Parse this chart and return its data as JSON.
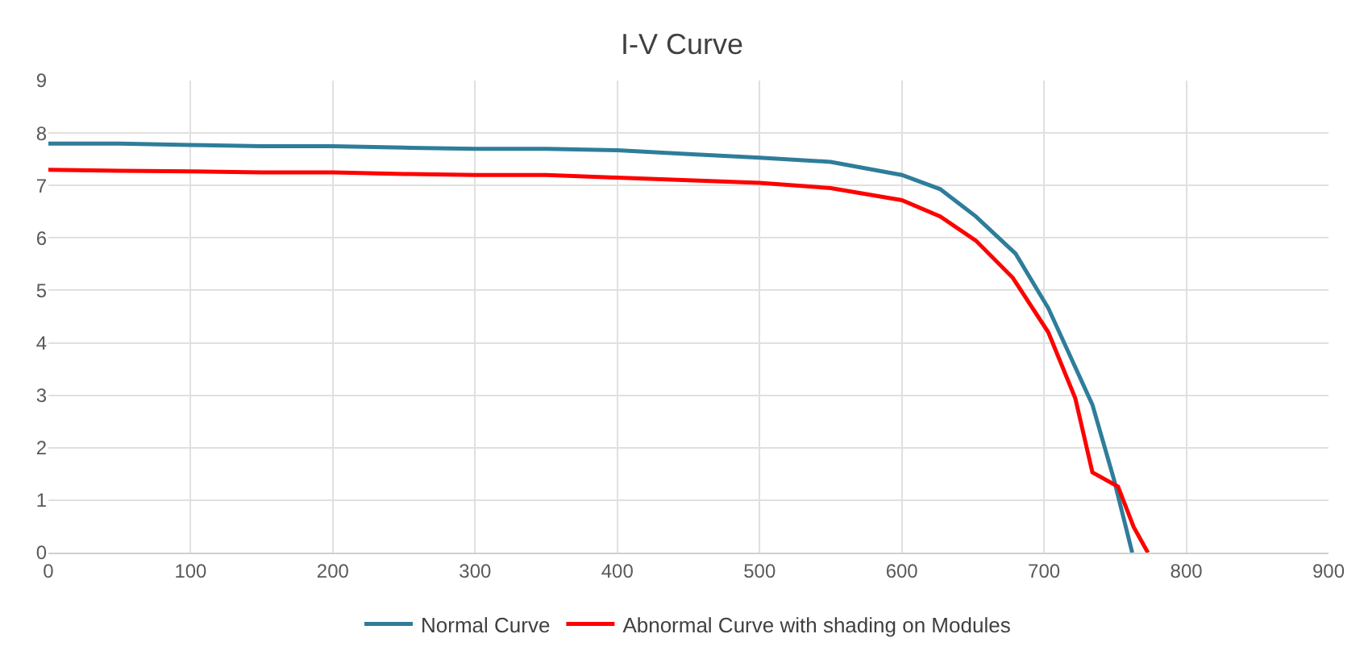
{
  "chart_data": {
    "type": "line",
    "title": "I-V Curve",
    "legend": "bottom",
    "grid": true,
    "marker": "none",
    "line_style": "solid",
    "xlim": [
      0,
      900
    ],
    "xticks": [
      0,
      100,
      200,
      300,
      400,
      500,
      600,
      700,
      800,
      900
    ],
    "ylim": [
      0,
      9
    ],
    "yticks": [
      0,
      1,
      2,
      3,
      4,
      5,
      6,
      7,
      8,
      9
    ],
    "series": [
      {
        "name": "Normal Curve",
        "color": "#2e7d9a",
        "x": [
          0,
          50,
          100,
          150,
          200,
          250,
          300,
          350,
          400,
          450,
          500,
          550,
          600,
          627,
          652,
          680,
          703,
          734,
          749,
          762
        ],
        "values": [
          7.8,
          7.8,
          7.77,
          7.75,
          7.75,
          7.72,
          7.7,
          7.7,
          7.67,
          7.6,
          7.53,
          7.45,
          7.2,
          6.93,
          6.41,
          5.7,
          4.66,
          2.82,
          1.41,
          0
        ]
      },
      {
        "name": "Abnormal Curve with shading on Modules",
        "color": "#ff0000",
        "x": [
          0,
          50,
          100,
          150,
          200,
          250,
          300,
          350,
          400,
          450,
          500,
          550,
          600,
          627,
          652,
          678,
          703,
          722,
          734,
          752,
          763,
          773
        ],
        "values": [
          7.3,
          7.28,
          7.27,
          7.25,
          7.25,
          7.22,
          7.2,
          7.2,
          7.15,
          7.1,
          7.05,
          6.95,
          6.72,
          6.41,
          5.95,
          5.24,
          4.2,
          2.94,
          1.53,
          1.26,
          0.49,
          0
        ]
      }
    ]
  }
}
